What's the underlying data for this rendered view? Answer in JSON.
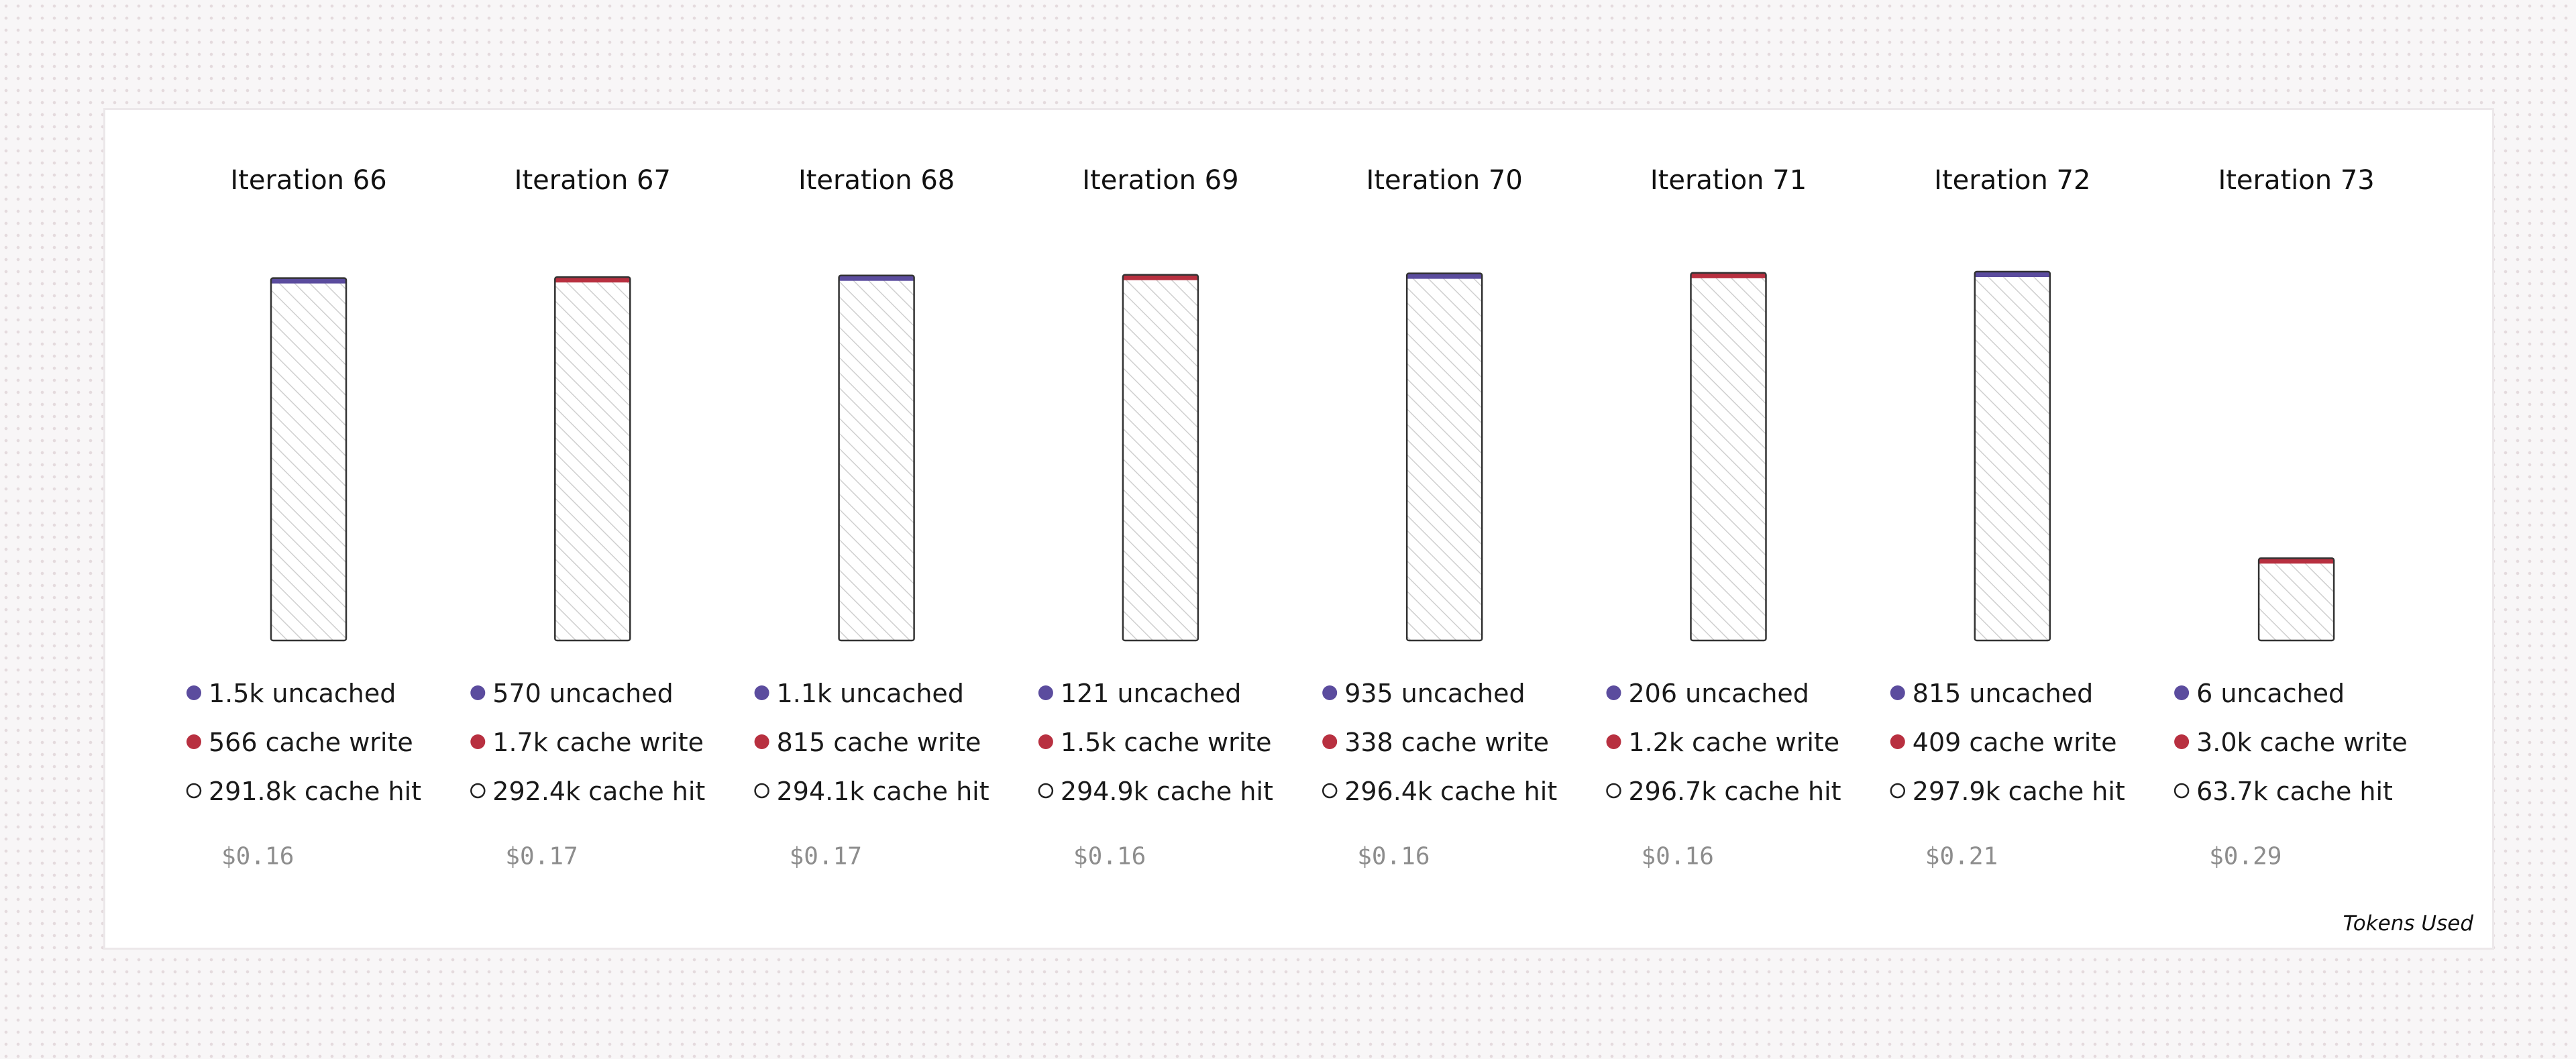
{
  "chart_data": {
    "type": "bar",
    "stacked": true,
    "footer_label": "Tokens Used",
    "colors": {
      "uncached": "#5b4c9e",
      "cache_write": "#b83040",
      "cache_hit_fill": "hatched-white",
      "outline": "#333333"
    },
    "legend_keys": [
      "uncached",
      "cache write",
      "cache hit"
    ],
    "iterations": [
      {
        "title": "Iteration 66",
        "uncached": 1500,
        "cache_write": 566,
        "cache_hit": 291800,
        "uncached_label": "1.5k uncached",
        "cache_write_label": "566 cache write",
        "cache_hit_label": "291.8k cache hit",
        "cost": "$0.16"
      },
      {
        "title": "Iteration 67",
        "uncached": 570,
        "cache_write": 1700,
        "cache_hit": 292400,
        "uncached_label": "570 uncached",
        "cache_write_label": "1.7k cache write",
        "cache_hit_label": "292.4k cache hit",
        "cost": "$0.17"
      },
      {
        "title": "Iteration 68",
        "uncached": 1100,
        "cache_write": 815,
        "cache_hit": 294100,
        "uncached_label": "1.1k uncached",
        "cache_write_label": "815 cache write",
        "cache_hit_label": "294.1k cache hit",
        "cost": "$0.17"
      },
      {
        "title": "Iteration 69",
        "uncached": 121,
        "cache_write": 1500,
        "cache_hit": 294900,
        "uncached_label": "121 uncached",
        "cache_write_label": "1.5k cache write",
        "cache_hit_label": "294.9k cache hit",
        "cost": "$0.16"
      },
      {
        "title": "Iteration 70",
        "uncached": 935,
        "cache_write": 338,
        "cache_hit": 296400,
        "uncached_label": "935 uncached",
        "cache_write_label": "338 cache write",
        "cache_hit_label": "296.4k cache hit",
        "cost": "$0.16"
      },
      {
        "title": "Iteration 71",
        "uncached": 206,
        "cache_write": 1200,
        "cache_hit": 296700,
        "uncached_label": "206 uncached",
        "cache_write_label": "1.2k cache write",
        "cache_hit_label": "296.7k cache hit",
        "cost": "$0.16"
      },
      {
        "title": "Iteration 72",
        "uncached": 815,
        "cache_write": 409,
        "cache_hit": 297900,
        "uncached_label": "815 uncached",
        "cache_write_label": "409 cache write",
        "cache_hit_label": "297.9k cache hit",
        "cost": "$0.21"
      },
      {
        "title": "Iteration 73",
        "uncached": 6,
        "cache_write": 3000,
        "cache_hit": 63700,
        "uncached_label": "6 uncached",
        "cache_write_label": "3.0k cache write",
        "cache_hit_label": "63.7k cache hit",
        "cost": "$0.29"
      }
    ]
  }
}
